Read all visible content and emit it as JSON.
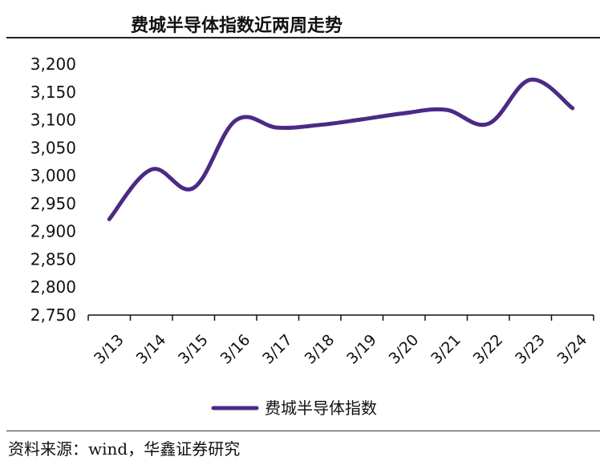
{
  "title": "费城半导体指数近两周走势",
  "source": "资料来源：wind，华鑫证券研究",
  "chart_data": {
    "type": "line",
    "categories": [
      "3/13",
      "3/14",
      "3/15",
      "3/16",
      "3/17",
      "3/18",
      "3/19",
      "3/20",
      "3/21",
      "3/22",
      "3/23",
      "3/24"
    ],
    "y_tick_labels": [
      "3,200",
      "3,150",
      "3,100",
      "3,050",
      "3,000",
      "2,950",
      "2,900",
      "2,850",
      "2,800",
      "2,750"
    ],
    "ylim": [
      2750,
      3200
    ],
    "y_step": 50,
    "series": [
      {
        "name": "费城半导体指数",
        "color": "#4B2A86",
        "values": [
          2922,
          3011,
          2978,
          3099,
          3086,
          3091,
          3101,
          3112,
          3118,
          3093,
          3172,
          3121
        ]
      }
    ],
    "legend_position": "bottom-center",
    "grid": false
  }
}
